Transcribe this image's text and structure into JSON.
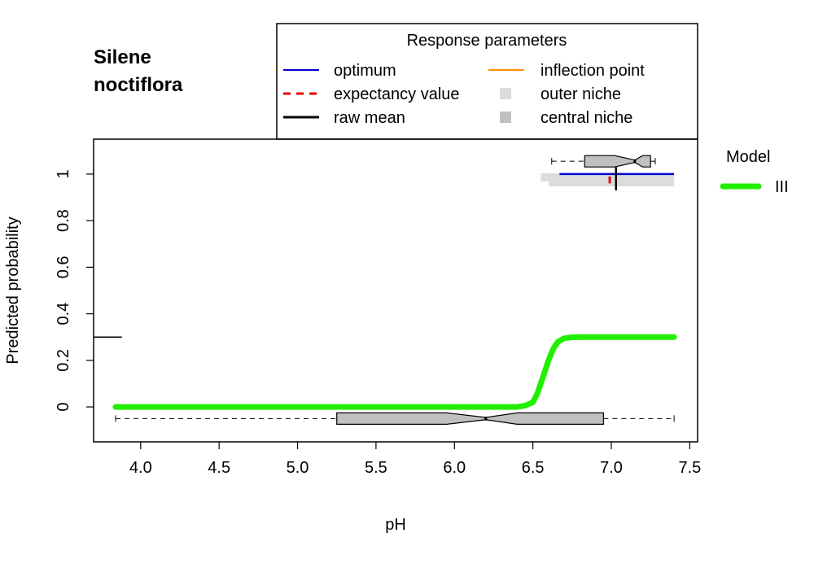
{
  "species": {
    "line1": "Silene",
    "line2": "noctiflora"
  },
  "legend_params": {
    "title": "Response parameters",
    "optimum": "optimum",
    "expectancy": "expectancy value",
    "raw_mean": "raw mean",
    "inflection": "inflection point",
    "outer_niche": "outer niche",
    "central_niche": "central niche"
  },
  "legend_model": {
    "title": "Model",
    "entry": "III"
  },
  "colors": {
    "optimum": "#0000cc",
    "expectancy": "#e00000",
    "raw_mean": "#000000",
    "inflection": "#ff8c00",
    "outer_niche": "#dcdcdc",
    "central_niche": "#c0c0c0",
    "curve": "#22ee00",
    "box_fill": "#c0c0c0"
  },
  "chart_data": {
    "type": "line",
    "xlabel": "pH",
    "ylabel": "Predicted probability",
    "xlim": [
      3.7,
      7.55
    ],
    "ylim": [
      -0.15,
      1.15
    ],
    "xticks": [
      "4.0",
      "4.5",
      "5.0",
      "5.5",
      "6.0",
      "6.5",
      "7.0",
      "7.5"
    ],
    "yticks": [
      "0",
      "0.2",
      "0.4",
      "0.6",
      "0.8",
      "1"
    ],
    "series": [
      {
        "name": "III",
        "x": [
          3.84,
          6.0,
          6.4,
          6.45,
          6.5,
          6.53,
          6.56,
          6.6,
          6.63,
          6.66,
          6.7,
          6.75,
          6.8,
          7.0,
          7.4
        ],
        "y": [
          0.0,
          0.0,
          0.0,
          0.005,
          0.02,
          0.06,
          0.12,
          0.2,
          0.25,
          0.28,
          0.295,
          0.299,
          0.3,
          0.3,
          0.3
        ]
      }
    ],
    "raw_mean_tick": {
      "x": [
        3.7,
        3.88
      ],
      "y": 0.3
    },
    "response_parameters": {
      "optimum_range": [
        6.67,
        7.4
      ],
      "optimum_y": 1.0,
      "raw_mean_x": 7.03,
      "raw_mean_y_range": [
        0.93,
        1.03
      ],
      "expectancy_x": 6.99,
      "expectancy_y_range": [
        0.96,
        0.99
      ],
      "outer_niche": [
        6.55,
        7.4
      ],
      "central_niche": [
        6.6,
        7.4
      ]
    },
    "boxplot_all": {
      "min": 3.84,
      "q1": 5.25,
      "median": 6.2,
      "q3": 6.95,
      "max": 7.4,
      "notch": [
        5.95,
        6.4
      ],
      "y": -0.05
    },
    "boxplot_presence": {
      "min": 6.62,
      "q1": 6.83,
      "median": 7.15,
      "q3": 7.25,
      "max": 7.28,
      "notch": [
        7.02,
        7.2
      ],
      "y": 1.055
    }
  }
}
